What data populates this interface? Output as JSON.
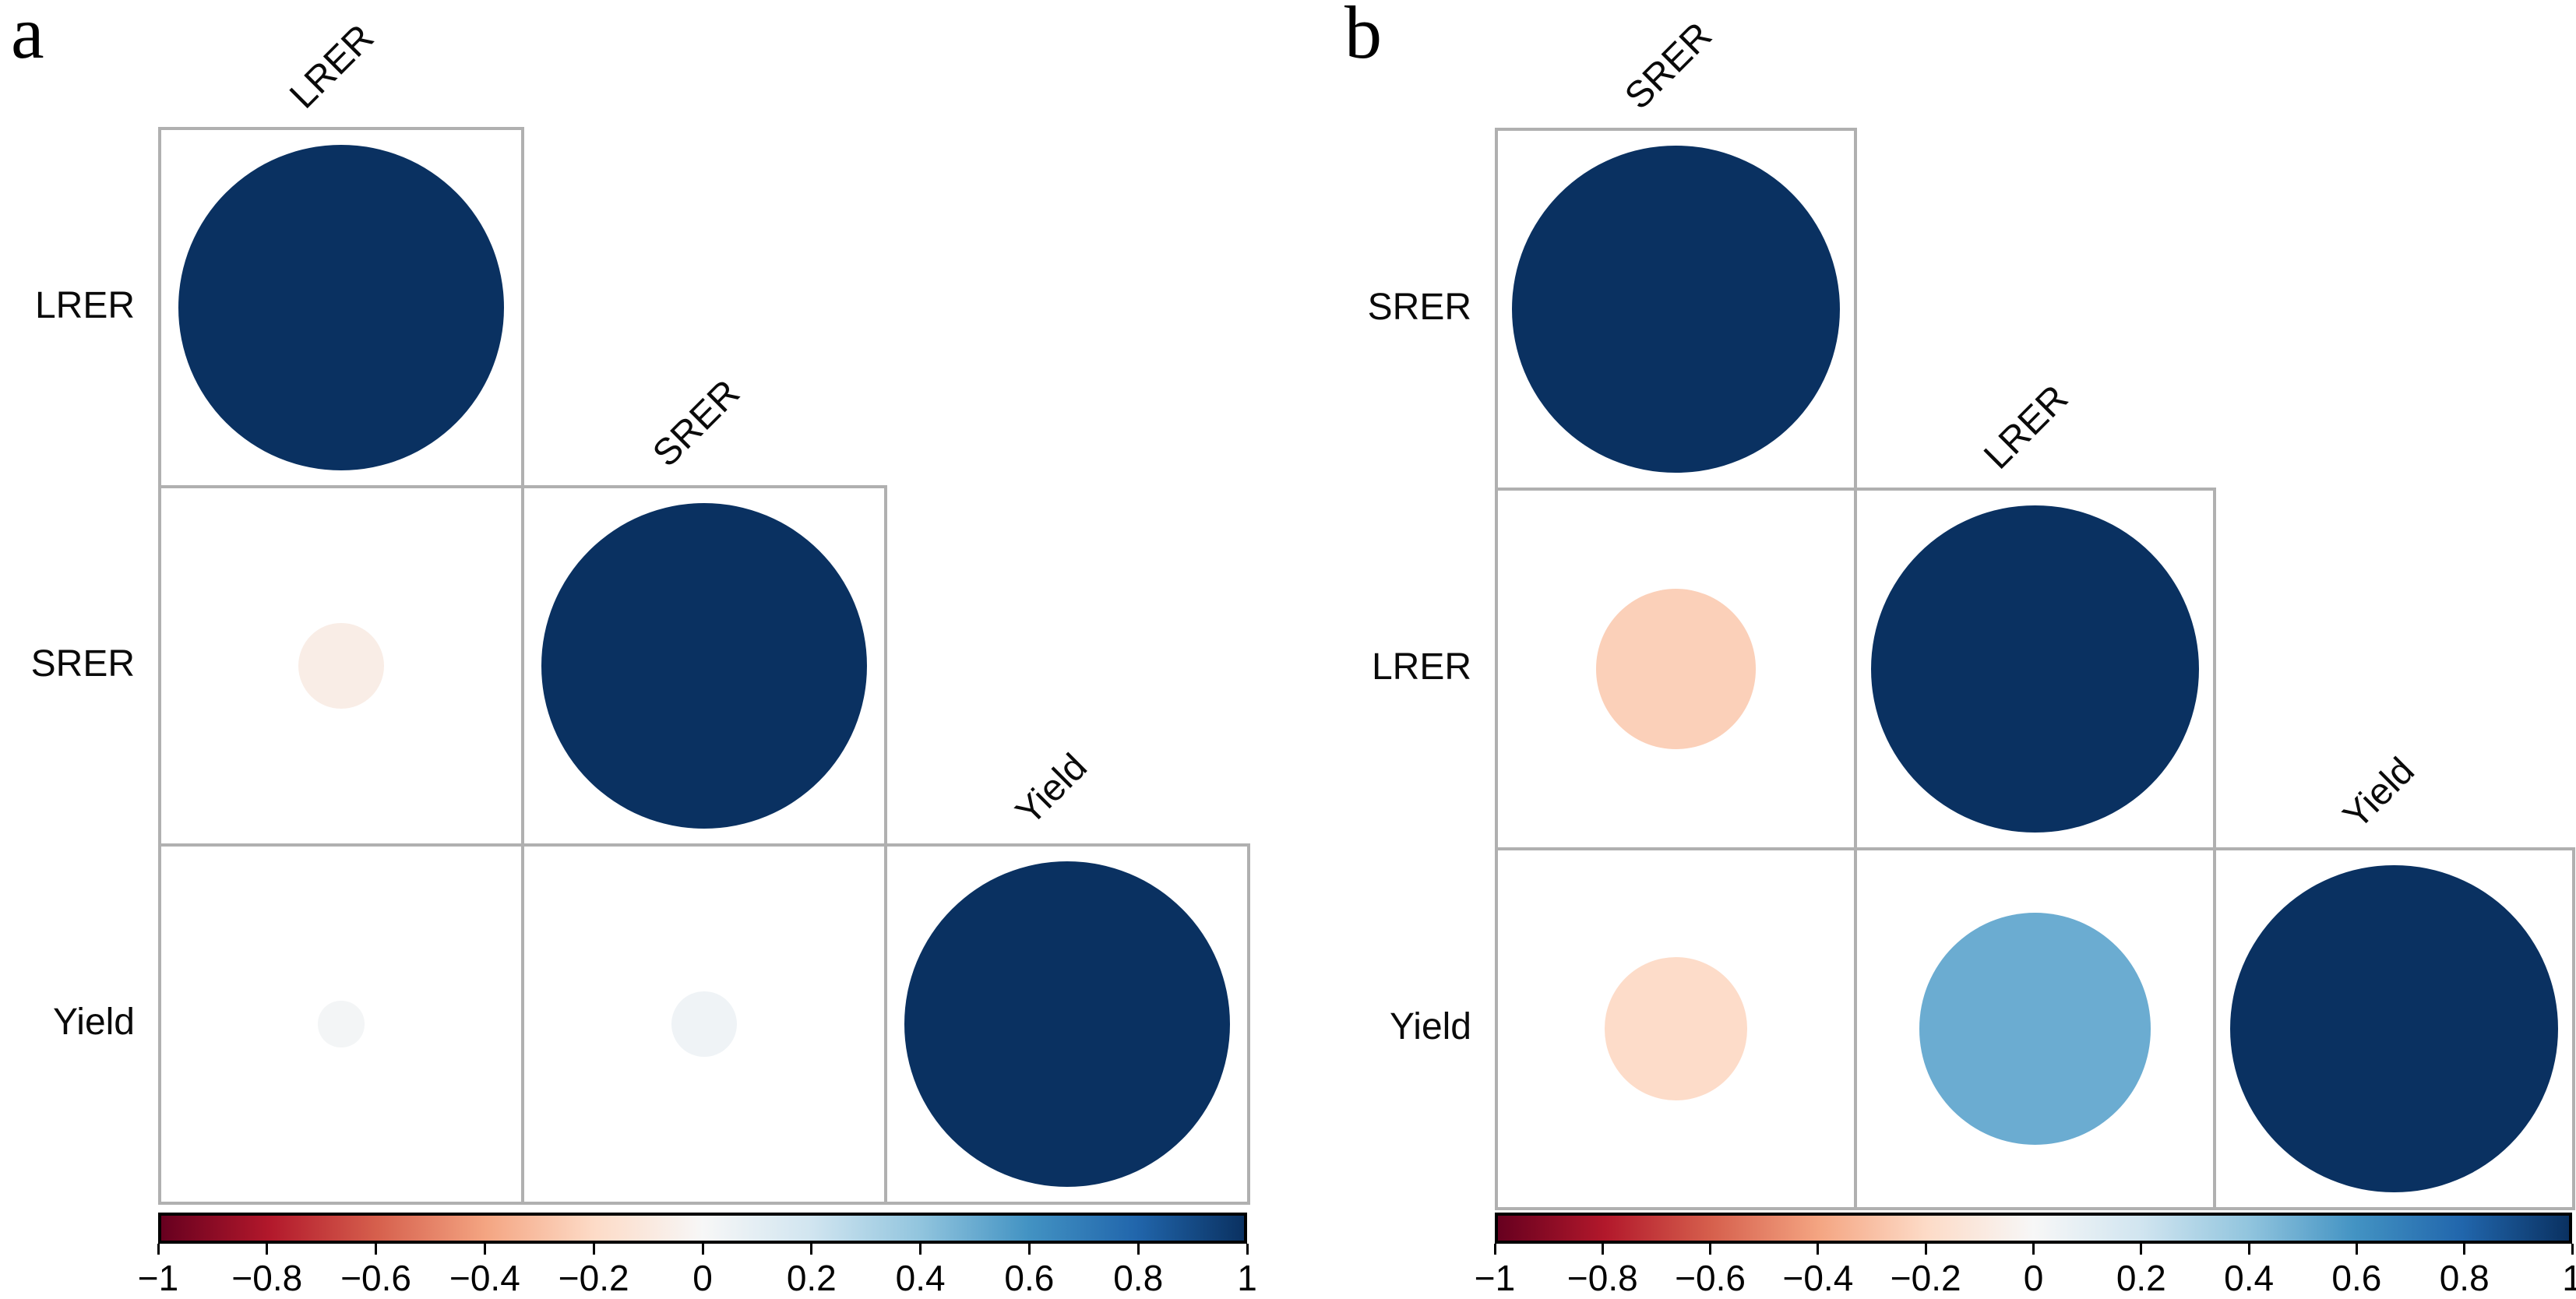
{
  "figure": {
    "description": "Two lower-triangular correlation matrix plots (circle method) with diverging red-blue colorbars"
  },
  "colors": {
    "background": "#ffffff",
    "grid_line": "#b0b0b0",
    "colorbar_border": "#000000",
    "label_text": "#0a0a0a",
    "rdbu_stops": [
      "#67001f",
      "#b2182b",
      "#d6604d",
      "#f4a582",
      "#fddbc7",
      "#f7f7f7",
      "#d1e5f0",
      "#92c5de",
      "#4393c3",
      "#2166ac",
      "#0a3161"
    ]
  },
  "colorbar": {
    "min": -1,
    "max": 1,
    "tick_labels": [
      "−1",
      "−0.8",
      "−0.6",
      "−0.4",
      "−0.2",
      "0",
      "0.2",
      "0.4",
      "0.6",
      "0.8",
      "1"
    ]
  },
  "chart_data": [
    {
      "type": "heatmap",
      "subtype": "correlation-matrix-lower-triangle",
      "panel_label": "a",
      "variables": [
        "LRER",
        "SRER",
        "Yield"
      ],
      "matrix": [
        [
          1.0
        ],
        [
          -0.07,
          1.0
        ],
        [
          0.02,
          0.04,
          1.0
        ]
      ],
      "palette": "RdBu",
      "value_range": [
        -1,
        1
      ],
      "legend_position": "bottom"
    },
    {
      "type": "heatmap",
      "subtype": "correlation-matrix-lower-triangle",
      "panel_label": "b",
      "variables": [
        "SRER",
        "LRER",
        "Yield"
      ],
      "matrix": [
        [
          1.0
        ],
        [
          -0.24,
          1.0
        ],
        [
          -0.19,
          0.5,
          1.0
        ]
      ],
      "palette": "RdBu",
      "value_range": [
        -1,
        1
      ],
      "legend_position": "bottom"
    }
  ]
}
